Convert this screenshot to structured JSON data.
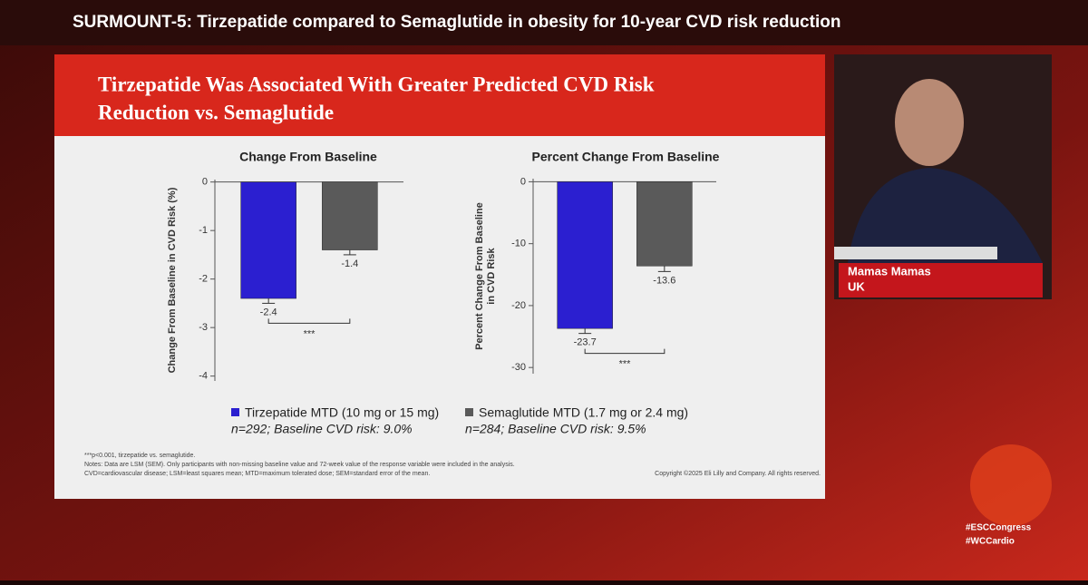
{
  "header": "SURMOUNT-5: Tirzepatide compared to Semaglutide in obesity for 10-year CVD risk reduction",
  "slide_title": [
    "Tirzepatide Was Associated With Greater Predicted CVD Risk",
    "Reduction vs. Semaglutide"
  ],
  "chart_data": [
    {
      "type": "bar",
      "title": "Change From Baseline",
      "y_label": "Change From Baseline in CVD Risk (%)",
      "categories": [
        null
      ],
      "ylim": [
        -4.1,
        0.05
      ],
      "yticks": [
        0,
        -1,
        -2,
        -3,
        -4
      ],
      "significance": "***",
      "series": [
        {
          "name": "Tirzepatide MTD (10 mg or 15 mg)",
          "color": "#2b1fd0",
          "values": [
            -2.4
          ],
          "errors": [
            0.1
          ]
        },
        {
          "name": "Semaglutide MTD (1.7 mg or 2.4 mg)",
          "color": "#5a5a5a",
          "values": [
            -1.4
          ],
          "errors": [
            0.1
          ]
        }
      ]
    },
    {
      "type": "bar",
      "title": "Percent Change From Baseline",
      "y_label": [
        "Percent Change From Baseline",
        "in CVD Risk"
      ],
      "categories": [
        null
      ],
      "ylim": [
        -31,
        0.5
      ],
      "yticks": [
        0,
        -10,
        -20,
        -30
      ],
      "significance": "***",
      "series": [
        {
          "color": "#2b1fd0",
          "values": [
            -23.7
          ],
          "errors": [
            0.8
          ]
        },
        {
          "color": "#5a5a5a",
          "values": [
            -13.6
          ],
          "errors": [
            0.9
          ]
        }
      ]
    }
  ],
  "legend_notes": [
    "n=292; Baseline CVD risk: 9.0%",
    "n=284; Baseline CVD risk: 9.5%"
  ],
  "footnotes": [
    "***p<0.001, tirzepatide vs. semaglutide.",
    "Notes: Data are LSM (SEM). Only participants with non-missing baseline value and 72-week value of the response variable were included in the analysis.",
    "CVD=cardiovascular disease; LSM=least squares mean; MTD=maximum tolerated dose; SEM=standard error of the mean."
  ],
  "copyright": "Copyright ©2025 Eli Lilly and Company. All rights reserved.",
  "speaker": {
    "name": "Mamas Mamas",
    "country": "UK"
  },
  "hashtags": [
    "#ESCCongress",
    "#WCCardio"
  ]
}
